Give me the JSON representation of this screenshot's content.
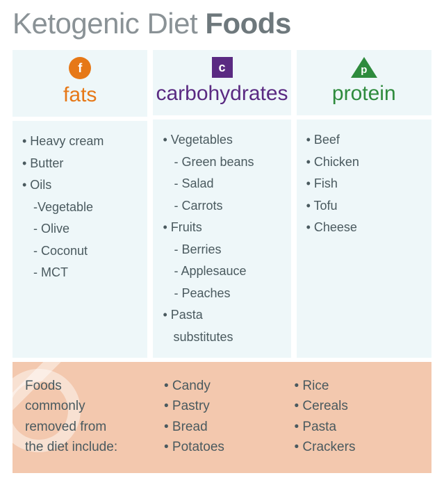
{
  "title_prefix": "Ketogenic Diet ",
  "title_bold": "Foods",
  "columns": [
    {
      "key": "fats",
      "label": "fats",
      "icon_letter": "f",
      "icon_shape": "circle",
      "color": "#e67817",
      "items": [
        {
          "text": "Heavy cream",
          "level": 0
        },
        {
          "text": "Butter",
          "level": 0
        },
        {
          "text": "Oils",
          "level": 0
        },
        {
          "text": "Vegetable",
          "level": 1,
          "dash": true
        },
        {
          "text": "Olive",
          "level": 1
        },
        {
          "text": "Coconut",
          "level": 1
        },
        {
          "text": "MCT",
          "level": 1
        }
      ]
    },
    {
      "key": "carbs",
      "label": "carbohydrates",
      "icon_letter": "c",
      "icon_shape": "square",
      "color": "#5a2a82",
      "items": [
        {
          "text": "Vegetables",
          "level": 0
        },
        {
          "text": "Green beans",
          "level": 1
        },
        {
          "text": "Salad",
          "level": 1
        },
        {
          "text": "Carrots",
          "level": 1
        },
        {
          "text": "Fruits",
          "level": 0
        },
        {
          "text": "Berries",
          "level": 1
        },
        {
          "text": "Applesauce",
          "level": 1
        },
        {
          "text": "Peaches",
          "level": 1
        },
        {
          "text": "Pasta",
          "level": 0
        },
        {
          "text": "substitutes",
          "level": 0,
          "no_bullet": true,
          "indent_extra": true
        }
      ]
    },
    {
      "key": "protein",
      "label": "protein",
      "icon_letter": "p",
      "icon_shape": "triangle",
      "color": "#2e8b3d",
      "items": [
        {
          "text": "Beef",
          "level": 0
        },
        {
          "text": "Chicken",
          "level": 0
        },
        {
          "text": "Fish",
          "level": 0
        },
        {
          "text": "Tofu",
          "level": 0
        },
        {
          "text": "Cheese",
          "level": 0
        }
      ]
    }
  ],
  "removed": {
    "lead_lines": [
      "Foods",
      "commonly",
      "removed from",
      "the diet include:"
    ],
    "col1": [
      "Candy",
      "Pastry",
      "Bread",
      "Potatoes"
    ],
    "col2": [
      "Rice",
      "Cereals",
      "Pasta",
      "Crackers"
    ],
    "bg_color": "#f3c8ae"
  },
  "panel_bg": "#eef7f9",
  "bullet": "•",
  "dash": "-"
}
